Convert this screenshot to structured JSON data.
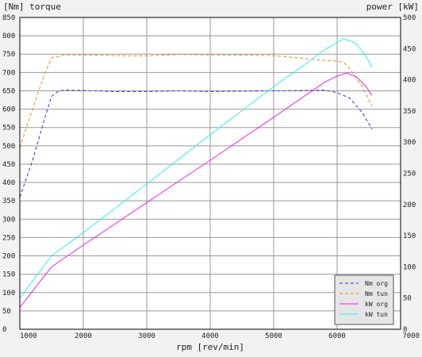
{
  "chart_data": {
    "type": "line",
    "left_axis_title": "[Nm] torque",
    "right_axis_title": "power [kW]",
    "xlabel": "rpm [rev/min]",
    "xlim": [
      1000,
      7000
    ],
    "x_ticks": [
      "1000",
      "2000",
      "3000",
      "4000",
      "5000",
      "6000",
      "7000"
    ],
    "ylim_left": [
      0,
      850
    ],
    "y_ticks_left": [
      "0",
      "50",
      "100",
      "150",
      "200",
      "250",
      "300",
      "350",
      "400",
      "450",
      "500",
      "550",
      "600",
      "650",
      "700",
      "750",
      "800",
      "850"
    ],
    "ylim_right": [
      0,
      500
    ],
    "y_ticks_right": [
      "0",
      "50",
      "100",
      "150",
      "200",
      "250",
      "300",
      "350",
      "400",
      "450",
      "500"
    ],
    "grid": true,
    "legend_position": "bottom-right",
    "series": [
      {
        "name": "Nm org",
        "axis": "left",
        "color": "#3333cc",
        "dash": true,
        "points": [
          [
            1000,
            360
          ],
          [
            1200,
            460
          ],
          [
            1400,
            580
          ],
          [
            1500,
            635
          ],
          [
            1600,
            648
          ],
          [
            1700,
            652
          ],
          [
            2000,
            651
          ],
          [
            2500,
            648
          ],
          [
            3000,
            648
          ],
          [
            3500,
            650
          ],
          [
            4000,
            648
          ],
          [
            4500,
            649
          ],
          [
            5000,
            650
          ],
          [
            5500,
            651
          ],
          [
            5800,
            652
          ],
          [
            6000,
            645
          ],
          [
            6200,
            630
          ],
          [
            6400,
            590
          ],
          [
            6550,
            545
          ]
        ]
      },
      {
        "name": "Nm tun",
        "axis": "left",
        "color": "#ee8822",
        "dash": true,
        "points": [
          [
            1000,
            495
          ],
          [
            1200,
            600
          ],
          [
            1400,
            700
          ],
          [
            1500,
            740
          ],
          [
            1600,
            743
          ],
          [
            1700,
            748
          ],
          [
            2000,
            748
          ],
          [
            2500,
            746
          ],
          [
            3000,
            745
          ],
          [
            3500,
            749
          ],
          [
            4000,
            748
          ],
          [
            4500,
            747
          ],
          [
            5000,
            746
          ],
          [
            5500,
            738
          ],
          [
            5800,
            733
          ],
          [
            6000,
            731
          ],
          [
            6100,
            728
          ],
          [
            6200,
            710
          ],
          [
            6400,
            660
          ],
          [
            6550,
            608
          ]
        ]
      },
      {
        "name": "kW org",
        "axis": "right",
        "color": "#ee22ee",
        "dash": false,
        "points": [
          [
            1000,
            35
          ],
          [
            1500,
            100
          ],
          [
            2000,
            135
          ],
          [
            3000,
            203
          ],
          [
            4000,
            271
          ],
          [
            5000,
            340
          ],
          [
            5500,
            375
          ],
          [
            5800,
            396
          ],
          [
            6000,
            406
          ],
          [
            6150,
            411
          ],
          [
            6300,
            405
          ],
          [
            6450,
            390
          ],
          [
            6550,
            375
          ]
        ]
      },
      {
        "name": "kW tun",
        "axis": "right",
        "color": "#33eeee",
        "dash": false,
        "points": [
          [
            1000,
            50
          ],
          [
            1500,
            118
          ],
          [
            2000,
            155
          ],
          [
            3000,
            233
          ],
          [
            4000,
            312
          ],
          [
            5000,
            389
          ],
          [
            5500,
            425
          ],
          [
            5800,
            448
          ],
          [
            6000,
            460
          ],
          [
            6100,
            465
          ],
          [
            6200,
            463
          ],
          [
            6300,
            458
          ],
          [
            6450,
            438
          ],
          [
            6550,
            420
          ]
        ]
      }
    ]
  }
}
